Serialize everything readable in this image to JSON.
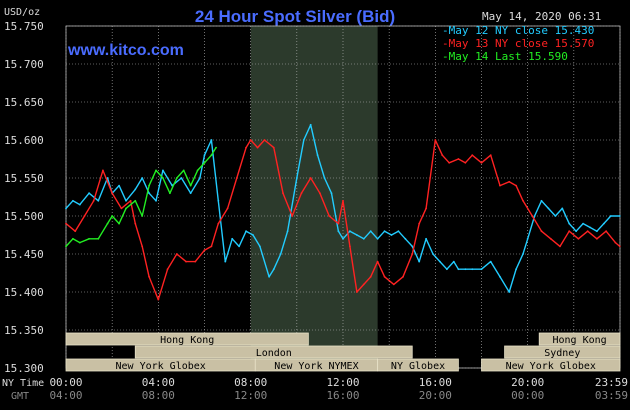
{
  "header": {
    "title": "24 Hour Spot Silver (Bid)",
    "datetime": "May 14, 2020 06:31",
    "watermark": "www.kitco.com",
    "ylabel": "USD/oz"
  },
  "legend": [
    {
      "text": "May 12 NY close 15.430",
      "color": "#22ccff"
    },
    {
      "text": "May 13 NY close 15.570",
      "color": "#ff2222"
    },
    {
      "text": "May 14 Last 15.590",
      "color": "#22ee22"
    }
  ],
  "colors": {
    "background": "#000000",
    "grid": "#bbbbbb",
    "title": "#4a6cff",
    "watermark": "#4a6cff",
    "shade": "#2c3a2c",
    "market_box_fill": "#c9c0a4",
    "market_box_border": "#e8e2c8",
    "market_box_text": "#000000",
    "axis_text": "#dddddd",
    "gmt_text": "#888888"
  },
  "axis": {
    "ny_time_label": "NY Time",
    "gmt_label": "GMT",
    "x_ticks_ny": [
      "00:00",
      "04:00",
      "08:00",
      "12:00",
      "16:00",
      "20:00",
      "23:59"
    ],
    "x_ticks_gmt": [
      "04:00",
      "08:00",
      "12:00",
      "16:00",
      "20:00",
      "00:00",
      "03:59"
    ],
    "y_ticks": [
      "15.750",
      "15.700",
      "15.650",
      "15.600",
      "15.550",
      "15.500",
      "15.450",
      "15.400",
      "15.350",
      "15.300"
    ]
  },
  "markets": [
    {
      "name": "Hong Kong",
      "start": 0.0,
      "end": 10.5
    },
    {
      "name": "London",
      "start": 3.0,
      "end": 15.0
    },
    {
      "name": "New York Globex",
      "start": 0.0,
      "end": 8.2
    },
    {
      "name": "New York NYMEX",
      "start": 8.2,
      "end": 13.5
    },
    {
      "name": "NY Globex",
      "start": 13.5,
      "end": 17.0
    },
    {
      "name": "Hong Kong",
      "start": 20.5,
      "end": 24.0
    },
    {
      "name": "Sydney",
      "start": 19.0,
      "end": 24.0
    },
    {
      "name": "New York Globex",
      "start": 18.0,
      "end": 24.0
    }
  ],
  "shaded_period": {
    "start": 8.0,
    "end": 13.5
  },
  "chart_data": {
    "type": "line",
    "title": "24 Hour Spot Silver (Bid)",
    "ylabel": "USD/oz",
    "xlabel": "NY Time",
    "xlim": [
      0,
      24
    ],
    "ylim": [
      15.3,
      15.75
    ],
    "grid": true,
    "series": [
      {
        "name": "May 12 NY close 15.430",
        "color": "#22ccff",
        "x": [
          0,
          0.3,
          0.6,
          1.0,
          1.4,
          1.8,
          2.0,
          2.3,
          2.6,
          3.0,
          3.3,
          3.6,
          3.9,
          4.2,
          4.6,
          5.0,
          5.4,
          5.8,
          6.0,
          6.3,
          6.6,
          6.9,
          7.2,
          7.5,
          7.8,
          8.1,
          8.4,
          8.8,
          9.0,
          9.3,
          9.6,
          10.0,
          10.3,
          10.6,
          10.9,
          11.2,
          11.5,
          11.8,
          12.0,
          12.3,
          12.6,
          12.9,
          13.2,
          13.5,
          13.8,
          14.1,
          14.4,
          14.7,
          15.0,
          15.3,
          15.6,
          15.9,
          16.2,
          16.5,
          16.8,
          17.0,
          17.3,
          17.6,
          18.0,
          18.4,
          18.8,
          19.2,
          19.5,
          19.8,
          20.0,
          20.3,
          20.6,
          20.9,
          21.2,
          21.5,
          21.8,
          22.1,
          22.4,
          22.7,
          23.0,
          23.3,
          23.6,
          23.99
        ],
        "values": [
          15.51,
          15.52,
          15.515,
          15.53,
          15.52,
          15.55,
          15.53,
          15.54,
          15.52,
          15.535,
          15.55,
          15.53,
          15.52,
          15.56,
          15.54,
          15.55,
          15.53,
          15.55,
          15.58,
          15.6,
          15.52,
          15.44,
          15.47,
          15.46,
          15.48,
          15.475,
          15.46,
          15.42,
          15.43,
          15.45,
          15.48,
          15.55,
          15.6,
          15.62,
          15.58,
          15.55,
          15.53,
          15.48,
          15.47,
          15.48,
          15.475,
          15.47,
          15.48,
          15.47,
          15.48,
          15.475,
          15.48,
          15.47,
          15.46,
          15.44,
          15.47,
          15.45,
          15.44,
          15.43,
          15.44,
          15.43,
          15.43,
          15.43,
          15.43,
          15.44,
          15.42,
          15.4,
          15.43,
          15.45,
          15.47,
          15.5,
          15.52,
          15.51,
          15.5,
          15.51,
          15.49,
          15.48,
          15.49,
          15.485,
          15.48,
          15.49,
          15.5,
          15.5
        ]
      },
      {
        "name": "May 13 NY close 15.570",
        "color": "#ff2222",
        "x": [
          0,
          0.4,
          0.8,
          1.2,
          1.6,
          2.0,
          2.4,
          2.8,
          3.0,
          3.3,
          3.6,
          4.0,
          4.4,
          4.8,
          5.2,
          5.6,
          6.0,
          6.3,
          6.6,
          7.0,
          7.4,
          7.8,
          8.0,
          8.3,
          8.6,
          9.0,
          9.4,
          9.8,
          10.2,
          10.6,
          11.0,
          11.4,
          11.8,
          12.0,
          12.3,
          12.6,
          12.9,
          13.2,
          13.5,
          13.8,
          14.2,
          14.6,
          15.0,
          15.3,
          15.6,
          16.0,
          16.3,
          16.6,
          17.0,
          17.3,
          17.6,
          18.0,
          18.4,
          18.8,
          19.2,
          19.5,
          19.8,
          20.2,
          20.6,
          21.0,
          21.4,
          21.8,
          22.2,
          22.6,
          23.0,
          23.4,
          23.8,
          23.99
        ],
        "values": [
          15.49,
          15.48,
          15.5,
          15.52,
          15.56,
          15.53,
          15.51,
          15.52,
          15.49,
          15.46,
          15.42,
          15.39,
          15.43,
          15.45,
          15.44,
          15.44,
          15.455,
          15.46,
          15.49,
          15.51,
          15.55,
          15.59,
          15.6,
          15.59,
          15.6,
          15.59,
          15.53,
          15.5,
          15.53,
          15.55,
          15.53,
          15.5,
          15.49,
          15.52,
          15.46,
          15.4,
          15.41,
          15.42,
          15.44,
          15.42,
          15.41,
          15.42,
          15.45,
          15.49,
          15.51,
          15.6,
          15.58,
          15.57,
          15.575,
          15.57,
          15.58,
          15.57,
          15.58,
          15.54,
          15.545,
          15.54,
          15.52,
          15.5,
          15.48,
          15.47,
          15.46,
          15.48,
          15.47,
          15.48,
          15.47,
          15.48,
          15.465,
          15.46
        ]
      },
      {
        "name": "May 14 Last 15.590",
        "color": "#22ee22",
        "x": [
          0,
          0.3,
          0.6,
          1.0,
          1.4,
          1.8,
          2.0,
          2.3,
          2.6,
          3.0,
          3.3,
          3.6,
          3.9,
          4.2,
          4.5,
          4.8,
          5.1,
          5.4,
          5.7,
          6.0,
          6.3,
          6.5
        ],
        "values": [
          15.46,
          15.47,
          15.465,
          15.47,
          15.47,
          15.49,
          15.5,
          15.49,
          15.51,
          15.52,
          15.5,
          15.54,
          15.56,
          15.55,
          15.53,
          15.55,
          15.56,
          15.54,
          15.56,
          15.57,
          15.58,
          15.59
        ]
      }
    ]
  }
}
